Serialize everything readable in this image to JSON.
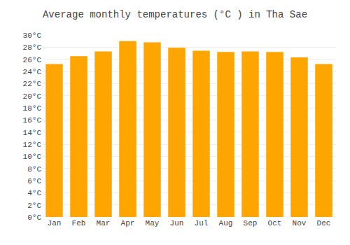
{
  "chart_data": {
    "type": "bar",
    "title": "Average monthly temperatures (°C ) in Tha Sae",
    "categories": [
      "Jan",
      "Feb",
      "Mar",
      "Apr",
      "May",
      "Jun",
      "Jul",
      "Aug",
      "Sep",
      "Oct",
      "Nov",
      "Dec"
    ],
    "values": [
      25.2,
      26.5,
      27.3,
      29.0,
      28.8,
      27.9,
      27.4,
      27.2,
      27.3,
      27.2,
      26.3,
      25.2
    ],
    "color": "#FFA500",
    "ylim": [
      0,
      30
    ],
    "yticks": [
      {
        "value": 0,
        "label": "0°C"
      },
      {
        "value": 2,
        "label": "2°C"
      },
      {
        "value": 4,
        "label": "4°C"
      },
      {
        "value": 6,
        "label": "6°C"
      },
      {
        "value": 8,
        "label": "8°C"
      },
      {
        "value": 10,
        "label": "10°C"
      },
      {
        "value": 12,
        "label": "12°C"
      },
      {
        "value": 14,
        "label": "14°C"
      },
      {
        "value": 16,
        "label": "16°C"
      },
      {
        "value": 18,
        "label": "18°C"
      },
      {
        "value": 20,
        "label": "20°C"
      },
      {
        "value": 22,
        "label": "22°C"
      },
      {
        "value": 24,
        "label": "24°C"
      },
      {
        "value": 26,
        "label": "26°C"
      },
      {
        "value": 28,
        "label": "28°C"
      },
      {
        "value": 30,
        "label": "30°C"
      }
    ],
    "grid": true
  }
}
